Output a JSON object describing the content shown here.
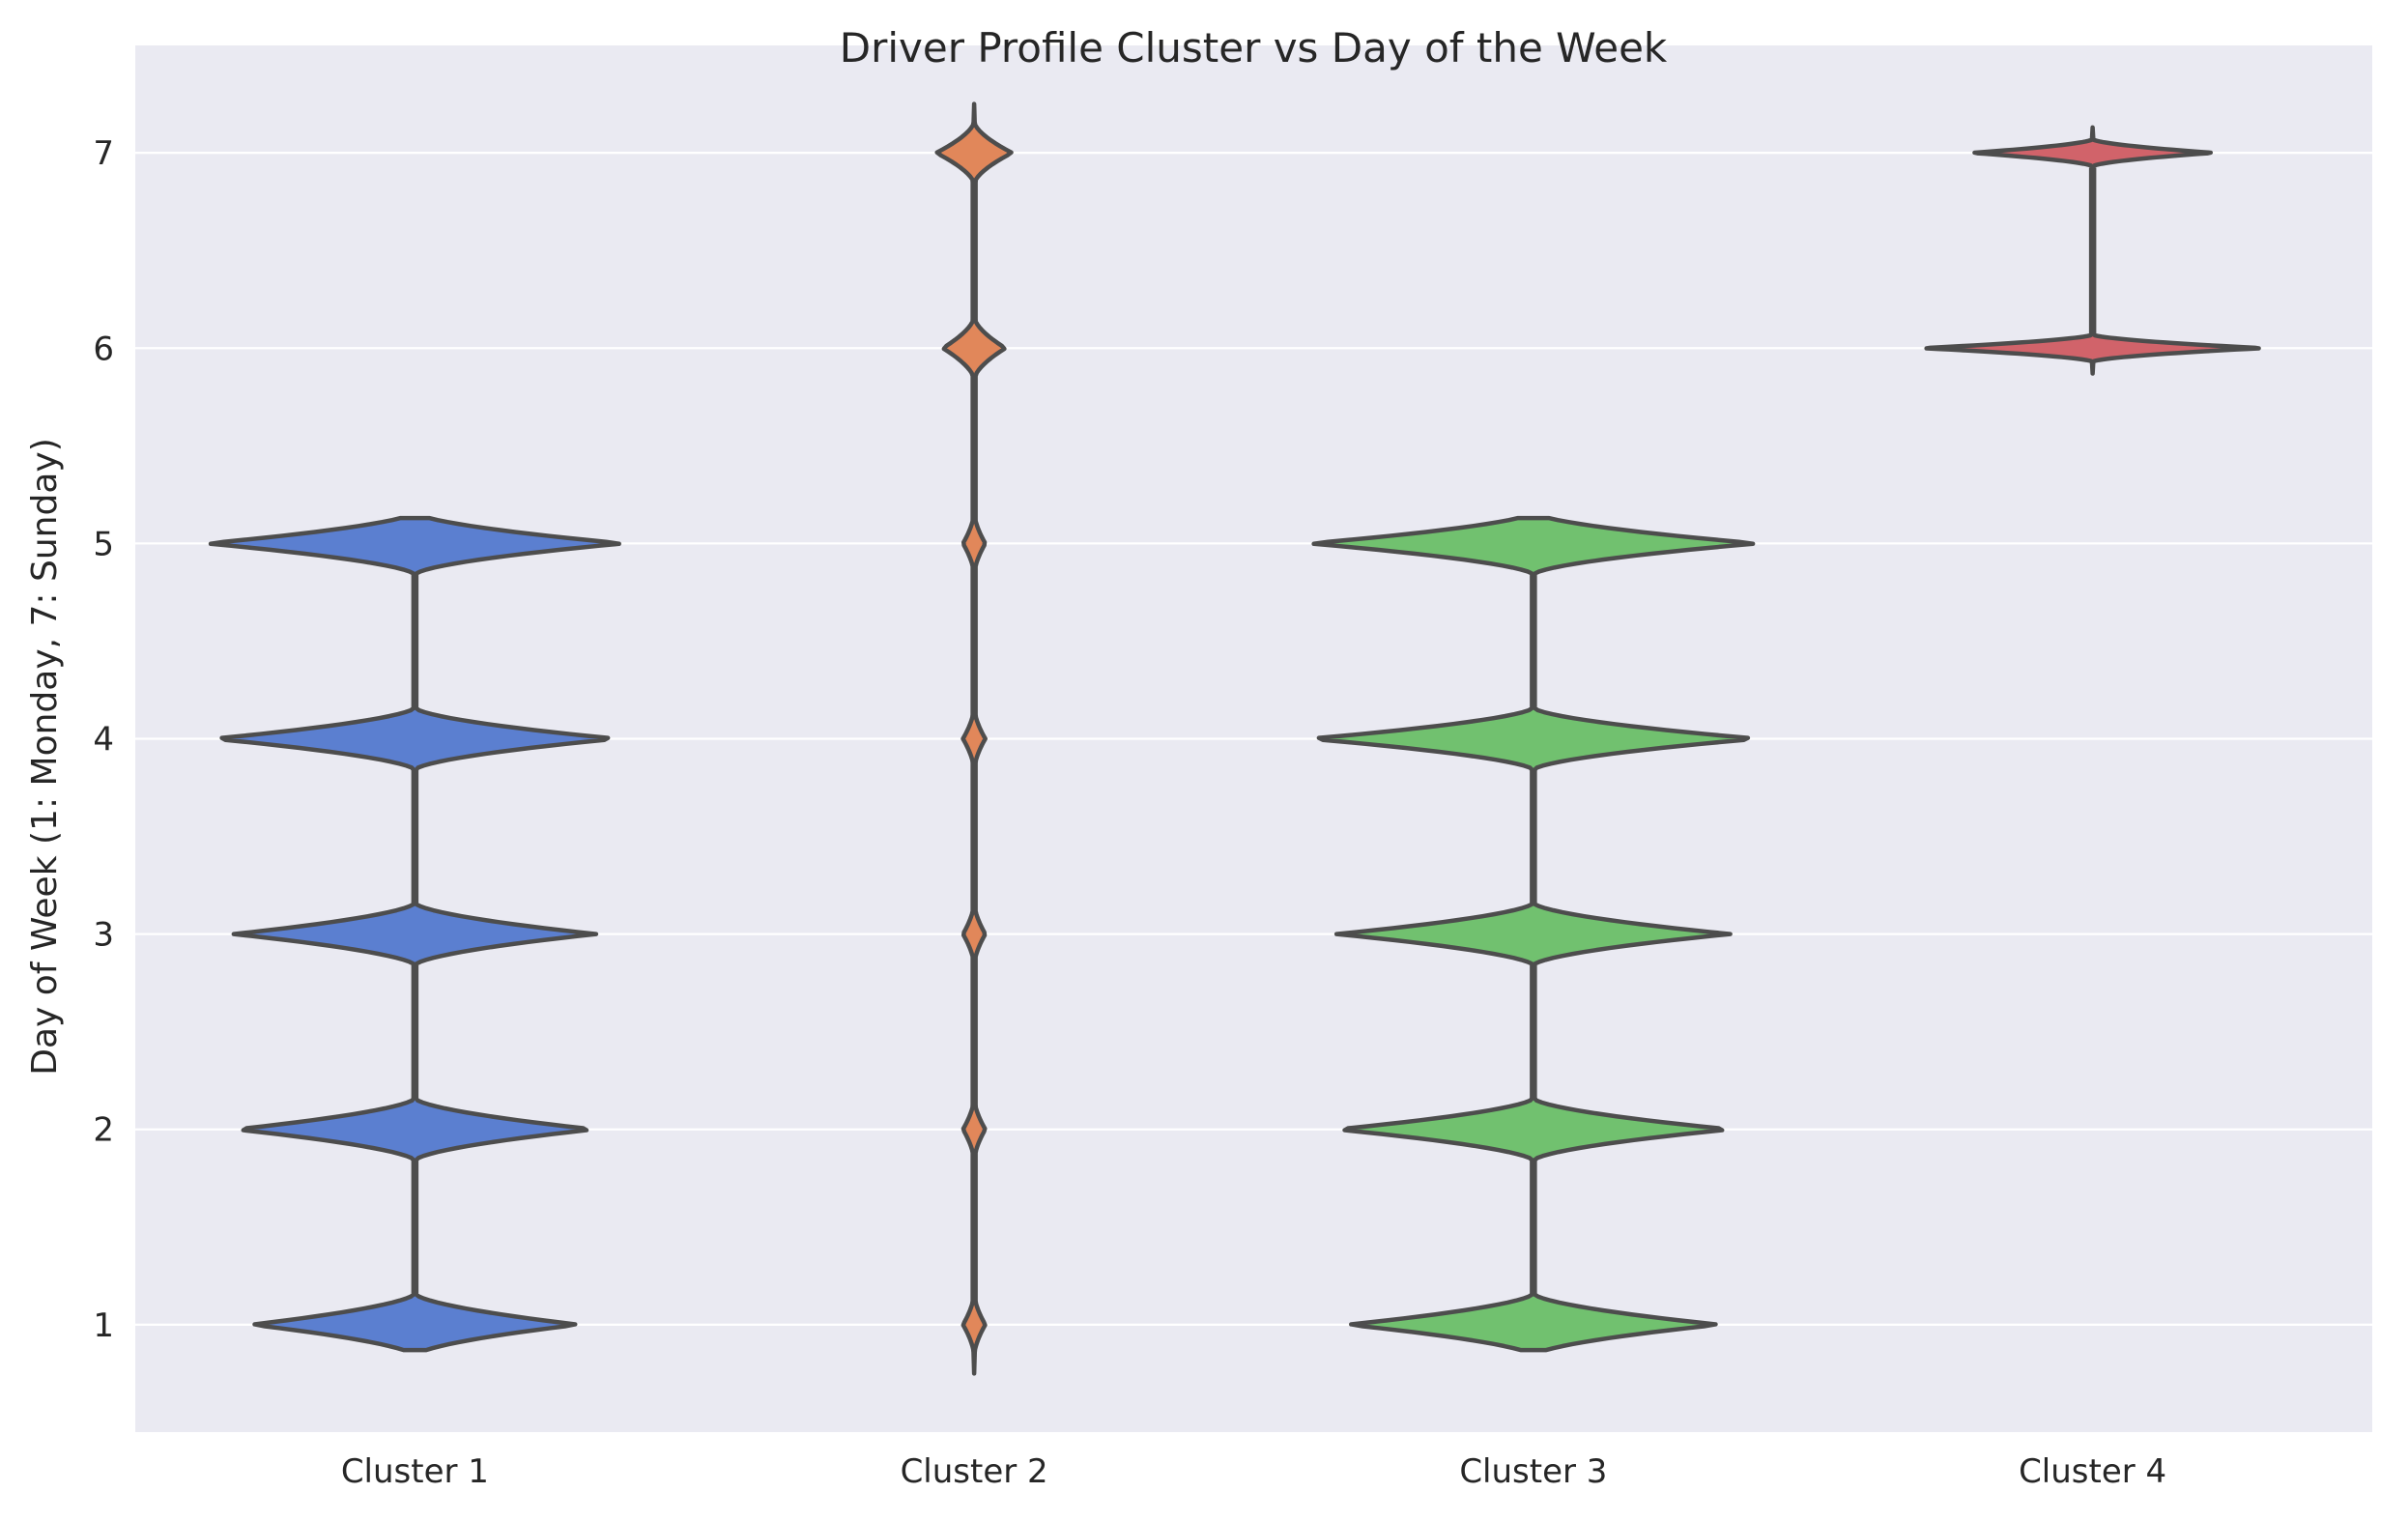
{
  "chart_data": {
    "type": "violin",
    "title": "Driver Profile Cluster vs Day of the Week",
    "xlabel": "",
    "ylabel": "Day of Week (1: Monday, 7: Sunday)",
    "categories": [
      "Cluster 1",
      "Cluster 2",
      "Cluster 3",
      "Cluster 4"
    ],
    "yticks": [
      1,
      2,
      3,
      4,
      5,
      6,
      7
    ],
    "ylim": [
      0.45,
      7.55
    ],
    "grid": true,
    "background_color": "#eaeaf2",
    "grid_color": "#ffffff",
    "outline_color": "#4d4d4d",
    "series": [
      {
        "category": "Cluster 1",
        "color": "#5b7fd0",
        "values": [
          1,
          2,
          3,
          4,
          5
        ],
        "relative_density": [
          0.73,
          0.8,
          0.81,
          0.9,
          0.93
        ]
      },
      {
        "category": "Cluster 2",
        "color": "#e1875a",
        "values": [
          1,
          2,
          3,
          4,
          5,
          6,
          7
        ],
        "relative_density": [
          0.05,
          0.05,
          0.05,
          0.05,
          0.05,
          0.14,
          0.17
        ]
      },
      {
        "category": "Cluster 3",
        "color": "#71c16f",
        "values": [
          1,
          2,
          3,
          4,
          5
        ],
        "relative_density": [
          0.83,
          0.88,
          0.88,
          1.0,
          1.0
        ]
      },
      {
        "category": "Cluster 4",
        "color": "#d1636a",
        "values": [
          6,
          7
        ],
        "relative_density": [
          0.76,
          0.54
        ]
      }
    ]
  }
}
